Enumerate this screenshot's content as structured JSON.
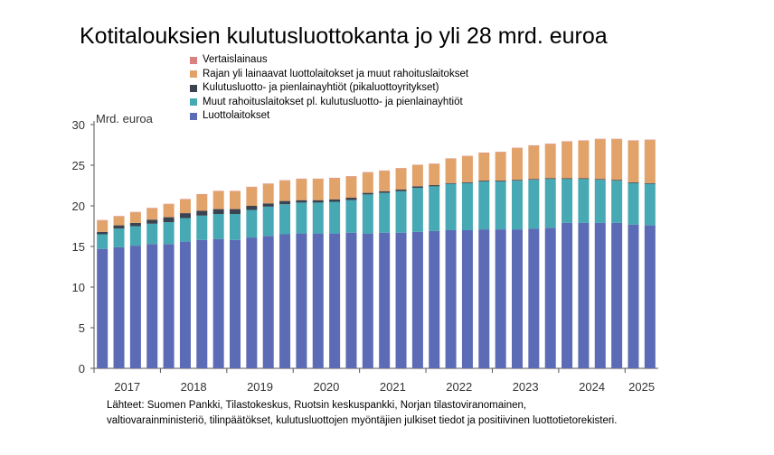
{
  "title": "Kotitalouksien kulutusluottokanta jo yli 28 mrd. euroa",
  "source_lines": [
    "Lähteet: Suomen Pankki, Tilastokeskus, Ruotsin keskuspankki, Norjan tilastoviranomainen,",
    "valtiovarainministeriö, tilinpäätökset, kulutusluottojen myöntäjien julkiset tiedot ja positiivinen luottotietorekisteri."
  ],
  "chart_data": {
    "type": "bar",
    "stacked": true,
    "ylabel": "Mrd. euroa",
    "ylim": [
      0,
      30
    ],
    "yticks": [
      0,
      5,
      10,
      15,
      20,
      25,
      30
    ],
    "xtick_labels": [
      "2017",
      "2018",
      "2019",
      "2020",
      "2021",
      "2022",
      "2023",
      "2024",
      "2025"
    ],
    "bars_per_year": 4,
    "legend_order": [
      "Vertaislainaus",
      "Rajan yli lainaavat luottolaitokset ja muut rahoituslaitokset",
      "Kulutusluotto- ja pienlainayhtiöt (pikaluottoyritykset)",
      "Muut rahoituslaitokset pl. kulutusluotto- ja pienlainayhtiöt",
      "Luottolaitokset"
    ],
    "series": [
      {
        "name": "Luottolaitokset",
        "color": "#5b6bb5",
        "values": [
          14.7,
          14.9,
          15.1,
          15.3,
          15.3,
          15.6,
          15.8,
          15.9,
          15.8,
          16.1,
          16.3,
          16.5,
          16.6,
          16.6,
          16.6,
          16.7,
          16.6,
          16.7,
          16.7,
          16.8,
          16.9,
          17.0,
          17.0,
          17.1,
          17.1,
          17.1,
          17.2,
          17.3,
          17.9,
          17.9,
          17.9,
          17.9,
          17.7,
          17.6
        ]
      },
      {
        "name": "Muut rahoituslaitokset pl. kulutusluotto- ja pienlainayhtiöt",
        "color": "#46a9b3",
        "values": [
          1.8,
          2.3,
          2.4,
          2.5,
          2.7,
          2.9,
          3.0,
          3.1,
          3.2,
          3.4,
          3.6,
          3.7,
          3.8,
          3.8,
          3.9,
          4.0,
          4.8,
          4.9,
          5.1,
          5.4,
          5.5,
          5.7,
          5.8,
          5.9,
          5.9,
          6.0,
          6.0,
          6.0,
          5.4,
          5.4,
          5.3,
          5.2,
          5.1,
          5.1
        ]
      },
      {
        "name": "Kulutusluotto- ja pienlainayhtiöt (pikaluottoyritykset)",
        "color": "#3b4250",
        "values": [
          0.3,
          0.4,
          0.4,
          0.5,
          0.6,
          0.6,
          0.6,
          0.6,
          0.6,
          0.5,
          0.4,
          0.4,
          0.3,
          0.3,
          0.3,
          0.3,
          0.2,
          0.2,
          0.2,
          0.2,
          0.15,
          0.1,
          0.1,
          0.1,
          0.1,
          0.1,
          0.1,
          0.1,
          0.1,
          0.1,
          0.1,
          0.1,
          0.1,
          0.1
        ]
      },
      {
        "name": "Rajan yli lainaavat luottolaitokset ja muut rahoituslaitokset",
        "color": "#e2a36a",
        "values": [
          1.4,
          1.1,
          1.3,
          1.4,
          1.6,
          1.7,
          2.0,
          2.2,
          2.2,
          2.3,
          2.4,
          2.5,
          2.6,
          2.6,
          2.6,
          2.6,
          2.5,
          2.5,
          2.6,
          2.6,
          2.6,
          3.0,
          3.2,
          3.4,
          3.5,
          3.9,
          4.1,
          4.2,
          4.5,
          4.6,
          4.9,
          5.0,
          5.1,
          5.3
        ]
      },
      {
        "name": "Vertaislainaus",
        "color": "#d98080",
        "values": [
          0.05,
          0.05,
          0.05,
          0.05,
          0.05,
          0.05,
          0.05,
          0.05,
          0.05,
          0.05,
          0.05,
          0.05,
          0.05,
          0.05,
          0.05,
          0.05,
          0.05,
          0.05,
          0.05,
          0.05,
          0.05,
          0.05,
          0.05,
          0.05,
          0.05,
          0.05,
          0.05,
          0.05,
          0.05,
          0.05,
          0.05,
          0.05,
          0.05,
          0.05
        ]
      }
    ]
  }
}
